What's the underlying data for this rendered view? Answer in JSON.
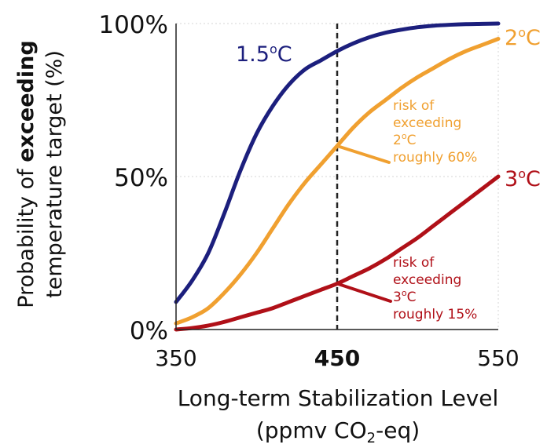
{
  "chart_data": {
    "type": "line",
    "xlabel_line1": "Long-term Stabilization Level",
    "xlabel_line2_prefix": "(ppmv CO",
    "xlabel_line2_sub": "2",
    "xlabel_line2_suffix": "-eq)",
    "ylabel_prefix": "Probability of ",
    "ylabel_bold": "exceeding",
    "ylabel_line2": "temperature target (%)",
    "xlim": [
      350,
      550
    ],
    "ylim": [
      0,
      100
    ],
    "x_ticks": [
      {
        "value": 350,
        "label": "350",
        "bold": false
      },
      {
        "value": 450,
        "label": "450",
        "bold": true
      },
      {
        "value": 550,
        "label": "550",
        "bold": false
      }
    ],
    "y_ticks": [
      {
        "value": 0,
        "label": "0%"
      },
      {
        "value": 50,
        "label": "50%"
      },
      {
        "value": 100,
        "label": "100%"
      }
    ],
    "grid": true,
    "reference_line": {
      "x": 450,
      "style": "dashed",
      "color": "#222222"
    },
    "x": [
      350,
      360,
      370,
      380,
      390,
      400,
      410,
      420,
      430,
      440,
      450,
      460,
      470,
      480,
      490,
      500,
      510,
      520,
      530,
      540,
      550
    ],
    "series": [
      {
        "name_main": "1.5",
        "name_sup": "o",
        "name_suffix": "C",
        "color": "#1c1f7d",
        "values": [
          9,
          16,
          25,
          38,
          52,
          64,
          73,
          80,
          85,
          88,
          91,
          93.5,
          95.5,
          97,
          98,
          98.8,
          99.3,
          99.6,
          99.8,
          99.9,
          100
        ]
      },
      {
        "name_main": "2",
        "name_sup": "o",
        "name_suffix": "C",
        "color": "#f0a030",
        "values": [
          2,
          4,
          7,
          12,
          18,
          25,
          33,
          41,
          48,
          54,
          60,
          66,
          71,
          75,
          79,
          82.5,
          85.5,
          88.5,
          91,
          93,
          95
        ]
      },
      {
        "name_main": "3",
        "name_sup": "o",
        "name_suffix": "C",
        "color": "#b01018",
        "values": [
          0,
          0.5,
          1.3,
          2.5,
          4,
          5.5,
          7,
          9,
          11,
          13,
          15,
          17.5,
          20,
          23,
          26.5,
          30,
          34,
          38,
          42,
          46,
          50
        ]
      }
    ],
    "annotations": [
      {
        "series": 1,
        "color": "#f0a030",
        "line1": "risk of",
        "line2": "exceeding",
        "line3_main": "2",
        "line3_sup": "o",
        "line3_suffix": "C",
        "line4": "roughly 60%"
      },
      {
        "series": 2,
        "color": "#b01018",
        "line1": "risk of",
        "line2": "exceeding",
        "line3_main": "3",
        "line3_sup": "o",
        "line3_suffix": "C",
        "line4": "roughly 15%"
      }
    ]
  }
}
